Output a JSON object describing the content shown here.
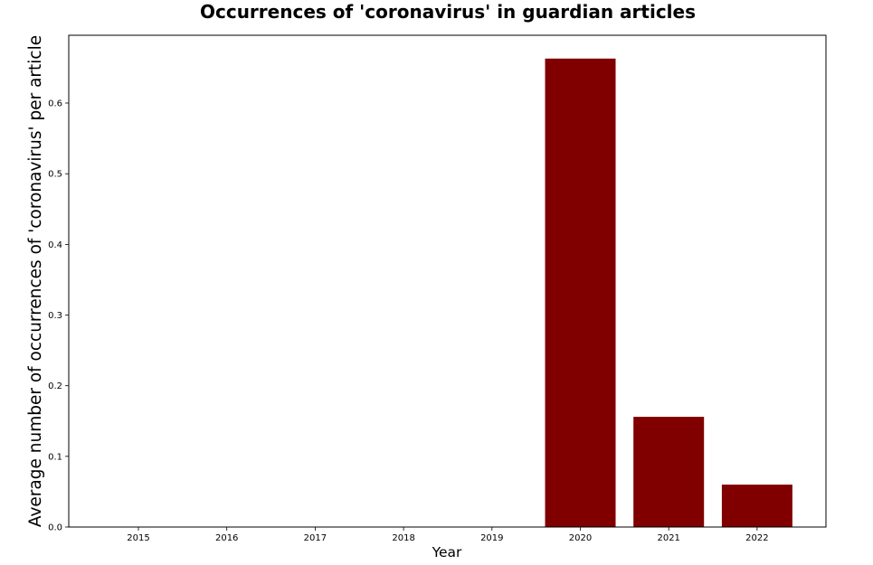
{
  "chart_data": {
    "type": "bar",
    "title": "Occurrences of 'coronavirus' in guardian articles",
    "xlabel": "Year",
    "ylabel": "Average number of occurrences of 'coronavirus' per article",
    "categories": [
      "2015",
      "2016",
      "2017",
      "2018",
      "2019",
      "2020",
      "2021",
      "2022"
    ],
    "values": [
      0,
      0,
      0,
      0,
      0,
      0.663,
      0.156,
      0.06
    ],
    "ylim": [
      0,
      0.696
    ],
    "yticks": [
      0.0,
      0.1,
      0.2,
      0.3,
      0.4,
      0.5,
      0.6
    ],
    "ytick_labels": [
      "0.0",
      "0.1",
      "0.2",
      "0.3",
      "0.4",
      "0.5",
      "0.6"
    ],
    "bar_color": "#800000",
    "grid": false,
    "legend": "none"
  }
}
